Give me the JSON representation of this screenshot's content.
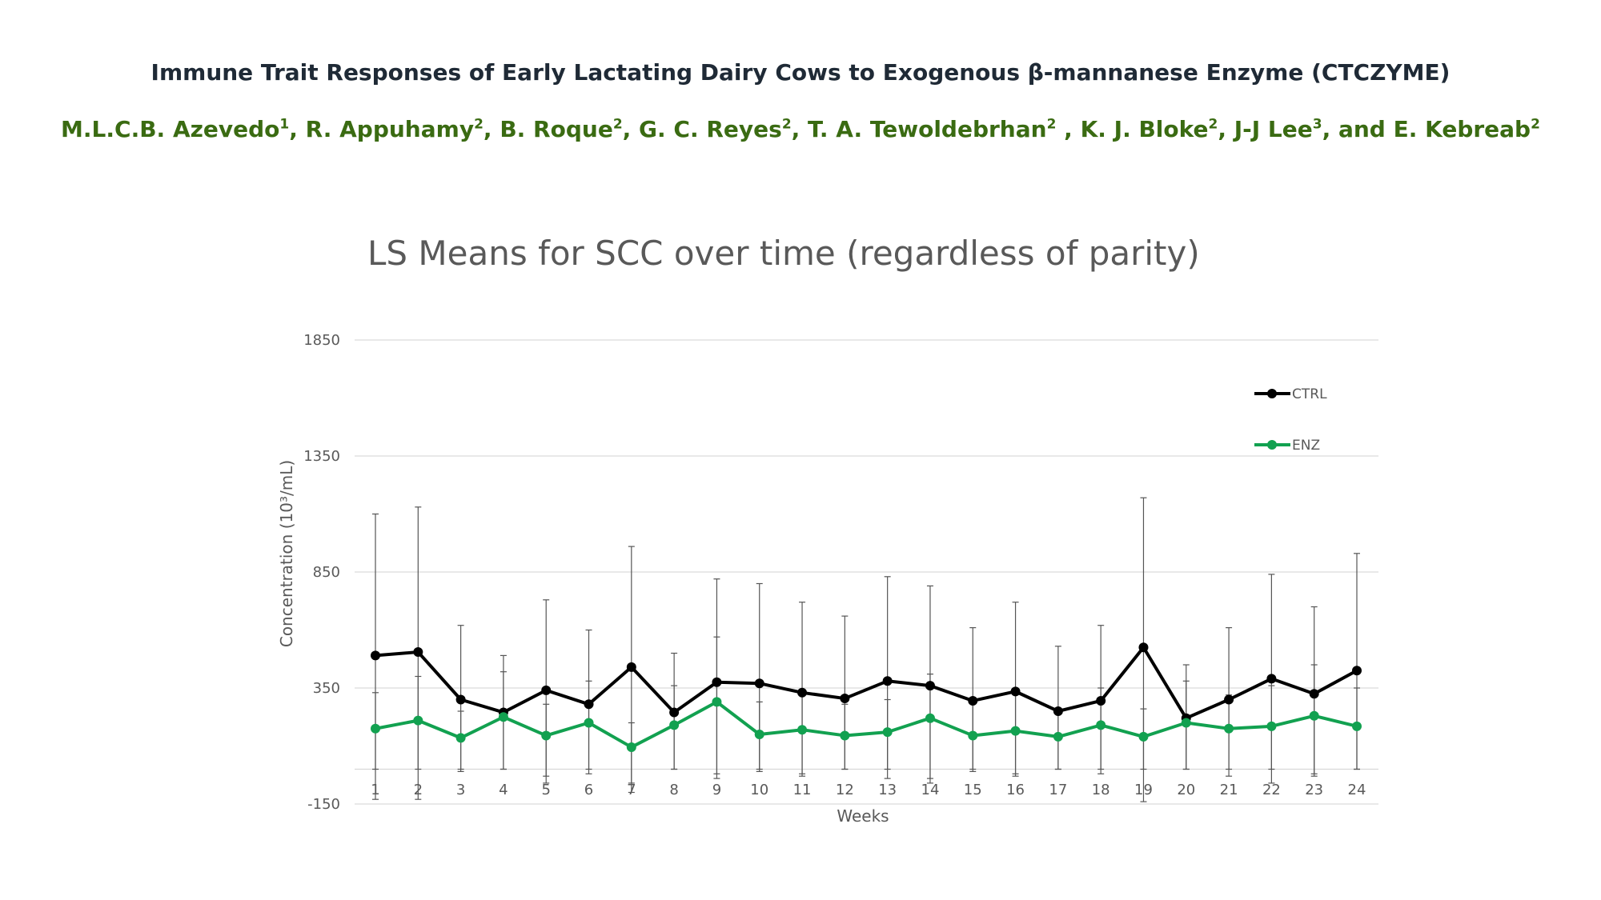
{
  "header": {
    "title": "Immune Trait Responses of Early Lactating Dairy Cows to Exogenous β-mannanese Enzyme (CTCZYME)",
    "authors": [
      {
        "name": "M.L.C.B. Azevedo",
        "aff": "1",
        "sep": ", "
      },
      {
        "name": "R. Appuhamy",
        "aff": "2",
        "sep": ",  "
      },
      {
        "name": "B. Roque",
        "aff": "2",
        "sep": ", "
      },
      {
        "name": "G. C. Reyes",
        "aff": "2",
        "sep": ", "
      },
      {
        "name": "T. A. Tewoldebrhan",
        "aff": "2",
        "sep": " , "
      },
      {
        "name": "K. J. Bloke",
        "aff": "2",
        "sep": ", "
      },
      {
        "name": "J-J Lee",
        "aff": "3",
        "sep": ", and "
      },
      {
        "name": "E. Kebreab",
        "aff": "2",
        "sep": ""
      }
    ]
  },
  "chart_data": {
    "type": "line",
    "title": "LS Means for SCC over time (regardless of parity)",
    "xlabel": "Weeks",
    "ylabel": "Concentration (10³/mL)",
    "ylim": [
      -150,
      1850
    ],
    "yticks": [
      -150,
      350,
      850,
      1350,
      1850
    ],
    "x": [
      "1",
      "2",
      "3",
      "4",
      "5",
      "6",
      "7",
      "8",
      "9",
      "10",
      "11",
      "12",
      "13",
      "14",
      "15",
      "16",
      "17",
      "18",
      "19",
      "20",
      "21",
      "22",
      "23",
      "24"
    ],
    "grid": true,
    "legend": "right",
    "series": [
      {
        "name": "CTRL",
        "color": "#000000",
        "values": [
          490,
          505,
          300,
          245,
          340,
          280,
          440,
          245,
          375,
          370,
          330,
          305,
          380,
          360,
          295,
          335,
          250,
          295,
          525,
          220,
          300,
          390,
          325,
          425
        ],
        "err_low": [
          -130,
          -130,
          0,
          0,
          -60,
          -20,
          -100,
          0,
          -40,
          -10,
          -20,
          0,
          -40,
          -60,
          0,
          -20,
          0,
          0,
          -140,
          0,
          0,
          -60,
          -20,
          0
        ],
        "err_high": [
          1100,
          1130,
          620,
          490,
          730,
          600,
          960,
          500,
          820,
          800,
          720,
          660,
          830,
          790,
          610,
          720,
          530,
          620,
          1170,
          450,
          610,
          840,
          700,
          930
        ]
      },
      {
        "name": "ENZ",
        "color": "#12a150",
        "values": [
          175,
          210,
          135,
          225,
          145,
          200,
          95,
          190,
          290,
          150,
          170,
          145,
          160,
          220,
          145,
          165,
          140,
          190,
          140,
          200,
          175,
          185,
          230,
          185
        ],
        "err_low": [
          0,
          0,
          -10,
          0,
          -30,
          0,
          -60,
          0,
          -20,
          0,
          -30,
          0,
          0,
          -40,
          -10,
          -30,
          0,
          -20,
          0,
          0,
          -30,
          0,
          -30,
          0
        ],
        "err_high": [
          330,
          400,
          250,
          420,
          280,
          380,
          200,
          360,
          570,
          290,
          320,
          280,
          300,
          410,
          290,
          330,
          260,
          350,
          260,
          380,
          320,
          360,
          450,
          350
        ]
      }
    ]
  }
}
